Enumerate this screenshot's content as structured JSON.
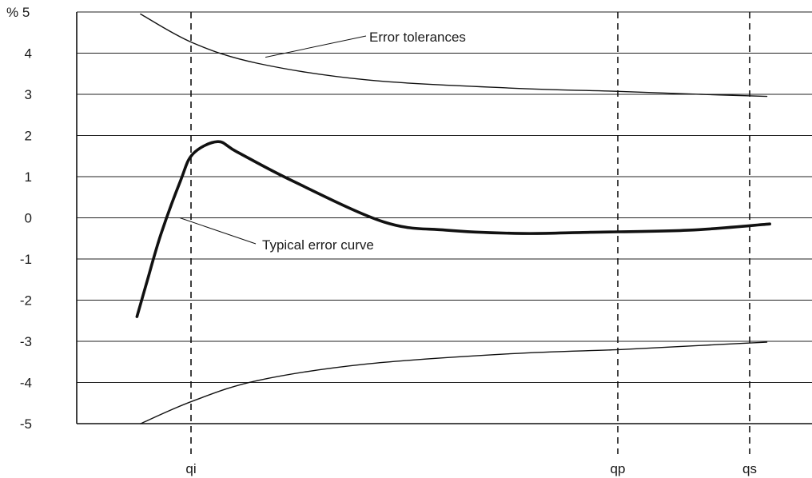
{
  "chart_data": {
    "type": "line",
    "x_categories": [
      "qi",
      "qp",
      "qs"
    ],
    "y_unit_label": "%",
    "ylim": [
      -5,
      5
    ],
    "y_ticks": [
      5,
      4,
      3,
      2,
      1,
      0,
      -1,
      -2,
      -3,
      -4,
      -5
    ],
    "y_tick_labels": [
      "% 5",
      "4",
      "3",
      "2",
      "1",
      "0",
      "-1",
      "-2",
      "-3",
      "-4",
      "-5"
    ],
    "grid": "horizontal",
    "vertical_reference_lines": [
      "qi",
      "qp",
      "qs"
    ],
    "series": [
      {
        "name": "Error tolerances",
        "role": "upper tolerance",
        "stroke": "thin",
        "points": [
          [
            0.088,
            4.95
          ],
          [
            0.16,
            4.25
          ],
          [
            0.25,
            3.75
          ],
          [
            0.4,
            3.35
          ],
          [
            0.6,
            3.15
          ],
          [
            0.75,
            3.07
          ],
          [
            0.86,
            3.0
          ],
          [
            0.951,
            2.95
          ]
        ]
      },
      {
        "name": "Error tolerances",
        "role": "lower tolerance",
        "stroke": "thin",
        "points": [
          [
            0.088,
            -5.0
          ],
          [
            0.16,
            -4.45
          ],
          [
            0.25,
            -3.95
          ],
          [
            0.4,
            -3.55
          ],
          [
            0.6,
            -3.3
          ],
          [
            0.75,
            -3.2
          ],
          [
            0.86,
            -3.1
          ],
          [
            0.951,
            -3.02
          ]
        ]
      },
      {
        "name": "Typical error curve",
        "role": "typical error",
        "stroke": "thick",
        "points": [
          [
            0.083,
            -2.4
          ],
          [
            0.096,
            -1.6
          ],
          [
            0.116,
            -0.4
          ],
          [
            0.143,
            0.9
          ],
          [
            0.16,
            1.55
          ],
          [
            0.194,
            1.85
          ],
          [
            0.221,
            1.6
          ],
          [
            0.297,
            0.9
          ],
          [
            0.423,
            -0.1
          ],
          [
            0.509,
            -0.3
          ],
          [
            0.614,
            -0.38
          ],
          [
            0.708,
            -0.35
          ],
          [
            0.844,
            -0.3
          ],
          [
            0.955,
            -0.15
          ]
        ]
      }
    ],
    "annotations": [
      {
        "text": "Error tolerances",
        "points_to": "upper tolerance",
        "anchor": [
          0.26,
          3.9
        ]
      },
      {
        "text": "Typical error curve",
        "points_to": "typical error",
        "anchor": [
          0.142,
          0.0
        ]
      }
    ]
  }
}
